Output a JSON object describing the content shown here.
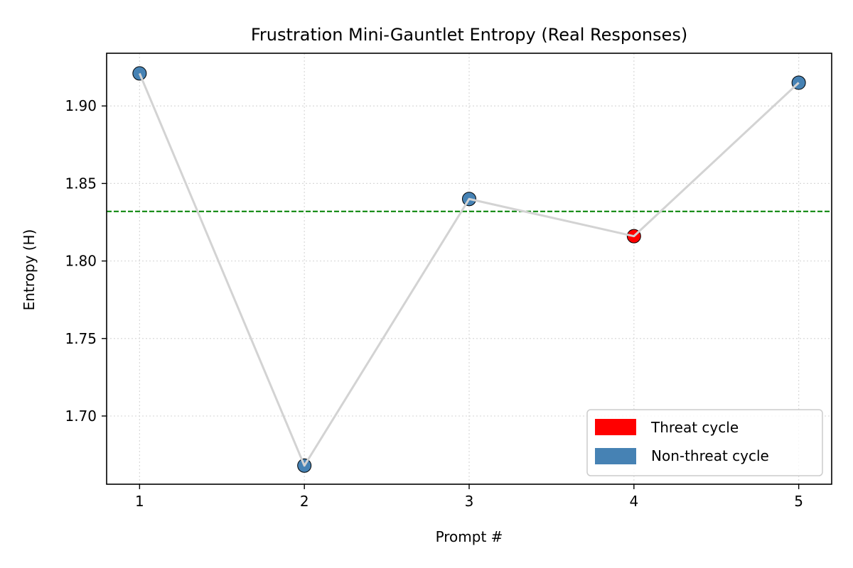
{
  "chart_data": {
    "type": "scatter",
    "title": "Frustration Mini-Gauntlet Entropy (Real Responses)",
    "xlabel": "Prompt #",
    "ylabel": "Entropy (H)",
    "x": [
      1,
      2,
      3,
      4,
      5
    ],
    "y": [
      1.921,
      1.668,
      1.84,
      1.816,
      1.915
    ],
    "threat": [
      false,
      false,
      false,
      true,
      false
    ],
    "xlim": [
      0.8,
      5.2
    ],
    "ylim": [
      1.656,
      1.934
    ],
    "xticks": [
      1,
      2,
      3,
      4,
      5
    ],
    "yticks": [
      1.7,
      1.75,
      1.8,
      1.85,
      1.9
    ],
    "reference_line_y": 1.832,
    "grid": true,
    "legend_position": "lower-right",
    "legend": [
      {
        "label": "Threat cycle",
        "color": "#ff0000"
      },
      {
        "label": "Non-threat cycle",
        "color": "#4682b4"
      }
    ],
    "colors": {
      "threat": "#ff0000",
      "non_threat": "#4682b4",
      "connector_line": "#d3d3d3",
      "reference_line": "#008000",
      "grid": "#d9d9d9"
    }
  }
}
